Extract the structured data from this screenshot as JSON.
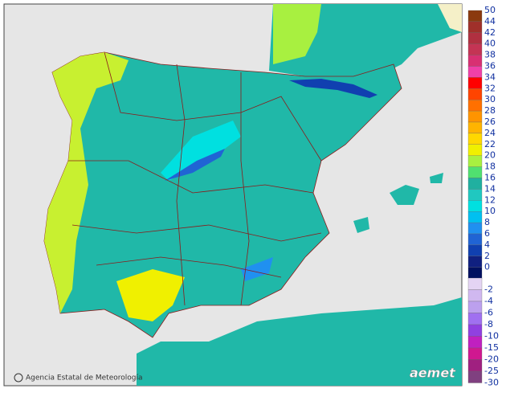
{
  "credit": "Agencia Estatal de Meteorología",
  "logo": "aemet",
  "legend": {
    "levels": [
      {
        "label": "50",
        "color": "#8b3a0f"
      },
      {
        "label": "44",
        "color": "#a0302a"
      },
      {
        "label": "42",
        "color": "#b03040"
      },
      {
        "label": "40",
        "color": "#c43454"
      },
      {
        "label": "38",
        "color": "#d83072"
      },
      {
        "label": "36",
        "color": "#f040a8"
      },
      {
        "label": "34",
        "color": "#ff0000"
      },
      {
        "label": "32",
        "color": "#ff4400"
      },
      {
        "label": "30",
        "color": "#ff7000"
      },
      {
        "label": "28",
        "color": "#ff9400"
      },
      {
        "label": "26",
        "color": "#ffb400"
      },
      {
        "label": "24",
        "color": "#ffd800"
      },
      {
        "label": "22",
        "color": "#f0f000"
      },
      {
        "label": "20",
        "color": "#a8f040"
      },
      {
        "label": "18",
        "color": "#50e070"
      },
      {
        "label": "16",
        "color": "#20b0a0"
      },
      {
        "label": "14",
        "color": "#20c8c0"
      },
      {
        "label": "12",
        "color": "#00e0e0"
      },
      {
        "label": "10",
        "color": "#00c0f0"
      },
      {
        "label": "8",
        "color": "#2090f0"
      },
      {
        "label": "6",
        "color": "#2064d4"
      },
      {
        "label": "4",
        "color": "#1040b0"
      },
      {
        "label": "2",
        "color": "#102080"
      },
      {
        "label": "0",
        "color": "#001060"
      }
    ],
    "negative_levels": [
      {
        "label": "-2",
        "color": "#e4d4f4"
      },
      {
        "label": "-4",
        "color": "#d0b8f0"
      },
      {
        "label": "-6",
        "color": "#bca0ee"
      },
      {
        "label": "-8",
        "color": "#a070f0"
      },
      {
        "label": "-10",
        "color": "#9040e0"
      },
      {
        "label": "-15",
        "color": "#c020c0"
      },
      {
        "label": "-20",
        "color": "#d01890"
      },
      {
        "label": "-25",
        "color": "#a02080"
      },
      {
        "label": "-30",
        "color": "#804080"
      }
    ]
  }
}
